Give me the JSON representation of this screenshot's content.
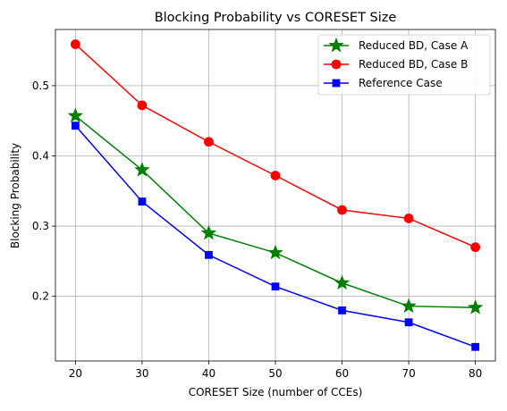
{
  "chart_data": {
    "type": "line",
    "title": "Blocking Probability vs CORESET Size",
    "xlabel": "CORESET Size (number of CCEs)",
    "ylabel": "Blocking Probability",
    "x": [
      20,
      30,
      40,
      50,
      60,
      70,
      80
    ],
    "xlim": [
      17,
      83
    ],
    "ylim": [
      0.108,
      0.58
    ],
    "xticks": [
      20,
      30,
      40,
      50,
      60,
      70,
      80
    ],
    "yticks": [
      0.2,
      0.3,
      0.4,
      0.5
    ],
    "ytick_labels": [
      "0.2",
      "0.3",
      "0.4",
      "0.5"
    ],
    "grid": true,
    "legend_position": "top-right",
    "series": [
      {
        "name": "Reduced BD, Case A",
        "color": "#008000",
        "marker": "star",
        "values": [
          0.457,
          0.38,
          0.29,
          0.262,
          0.219,
          0.186,
          0.184
        ]
      },
      {
        "name": "Reduced BD, Case B",
        "color": "#ff0000",
        "marker": "circle",
        "values": [
          0.559,
          0.472,
          0.42,
          0.372,
          0.323,
          0.311,
          0.27
        ]
      },
      {
        "name": "Reference Case",
        "color": "#0000ff",
        "marker": "square",
        "values": [
          0.443,
          0.335,
          0.259,
          0.214,
          0.18,
          0.163,
          0.128
        ]
      }
    ]
  }
}
